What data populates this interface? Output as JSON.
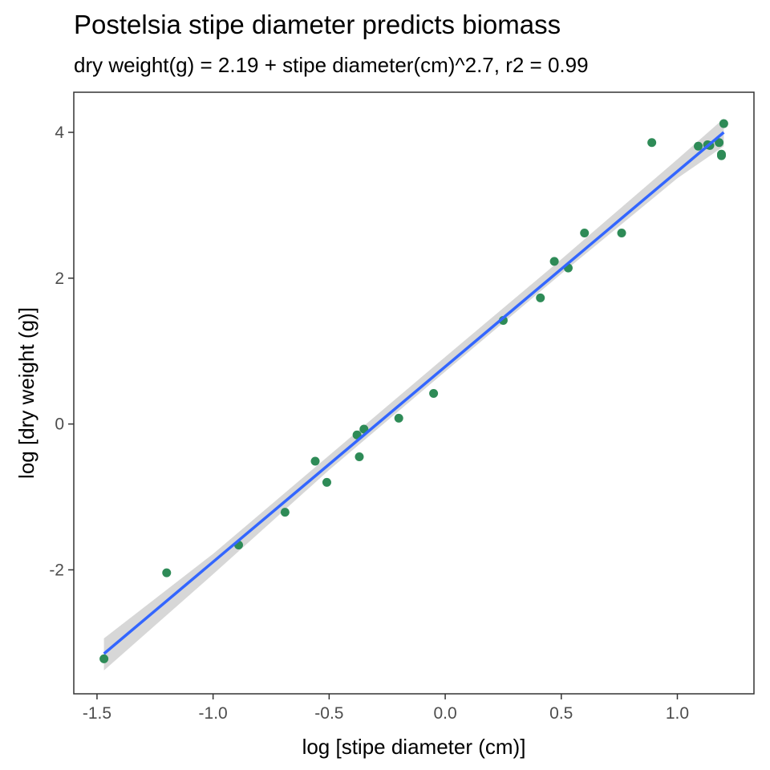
{
  "chart_data": {
    "type": "scatter",
    "title": "Postelsia stipe diameter predicts biomass",
    "subtitle": "dry weight(g) = 2.19 + stipe diameter(cm)^2.7, r2 = 0.99",
    "xlabel": "log [stipe diameter (cm)]",
    "ylabel": "log [dry weight (g)]",
    "xlim": [
      -1.6,
      1.33
    ],
    "ylim": [
      -3.7,
      4.55
    ],
    "xticks": [
      -1.5,
      -1.0,
      -0.5,
      0.0,
      0.5,
      1.0
    ],
    "xtick_labels": [
      "-1.5",
      "-1.0",
      "-0.5",
      "0.0",
      "0.5",
      "1.0"
    ],
    "yticks": [
      -2,
      0,
      2,
      4
    ],
    "ytick_labels": [
      "-2",
      "0",
      "2",
      "4"
    ],
    "grid": false,
    "points": [
      {
        "x": -1.47,
        "y": -3.22
      },
      {
        "x": -1.2,
        "y": -2.04
      },
      {
        "x": -0.89,
        "y": -1.66
      },
      {
        "x": -0.69,
        "y": -1.21
      },
      {
        "x": -0.56,
        "y": -0.51
      },
      {
        "x": -0.51,
        "y": -0.8
      },
      {
        "x": -0.38,
        "y": -0.15
      },
      {
        "x": -0.37,
        "y": -0.45
      },
      {
        "x": -0.35,
        "y": -0.07
      },
      {
        "x": -0.2,
        "y": 0.08
      },
      {
        "x": -0.05,
        "y": 0.42
      },
      {
        "x": 0.25,
        "y": 1.42
      },
      {
        "x": 0.41,
        "y": 1.73
      },
      {
        "x": 0.47,
        "y": 2.23
      },
      {
        "x": 0.53,
        "y": 2.14
      },
      {
        "x": 0.6,
        "y": 2.62
      },
      {
        "x": 0.76,
        "y": 2.62
      },
      {
        "x": 0.89,
        "y": 3.86
      },
      {
        "x": 1.09,
        "y": 3.81
      },
      {
        "x": 1.13,
        "y": 3.83
      },
      {
        "x": 1.14,
        "y": 3.82
      },
      {
        "x": 1.18,
        "y": 3.86
      },
      {
        "x": 1.19,
        "y": 3.68
      },
      {
        "x": 1.19,
        "y": 3.7
      },
      {
        "x": 1.2,
        "y": 4.12
      }
    ],
    "fit_line": {
      "x": [
        -1.47,
        1.2
      ],
      "y": [
        -3.15,
        4.0
      ]
    },
    "confidence_band": {
      "x": [
        -1.47,
        -1.0,
        -0.5,
        0.0,
        0.5,
        1.0,
        1.2
      ],
      "upper": [
        -2.94,
        -1.78,
        -0.43,
        0.92,
        2.26,
        3.63,
        4.19
      ],
      "lower": [
        -3.38,
        -2.06,
        -0.63,
        0.72,
        2.06,
        3.37,
        3.81
      ]
    },
    "colors": {
      "points": "#2e8b57",
      "fit_line": "#3366ff",
      "confidence_band": "#d3d3d3",
      "panel_border": "#333333",
      "tick_label": "#4d4d4d"
    }
  }
}
